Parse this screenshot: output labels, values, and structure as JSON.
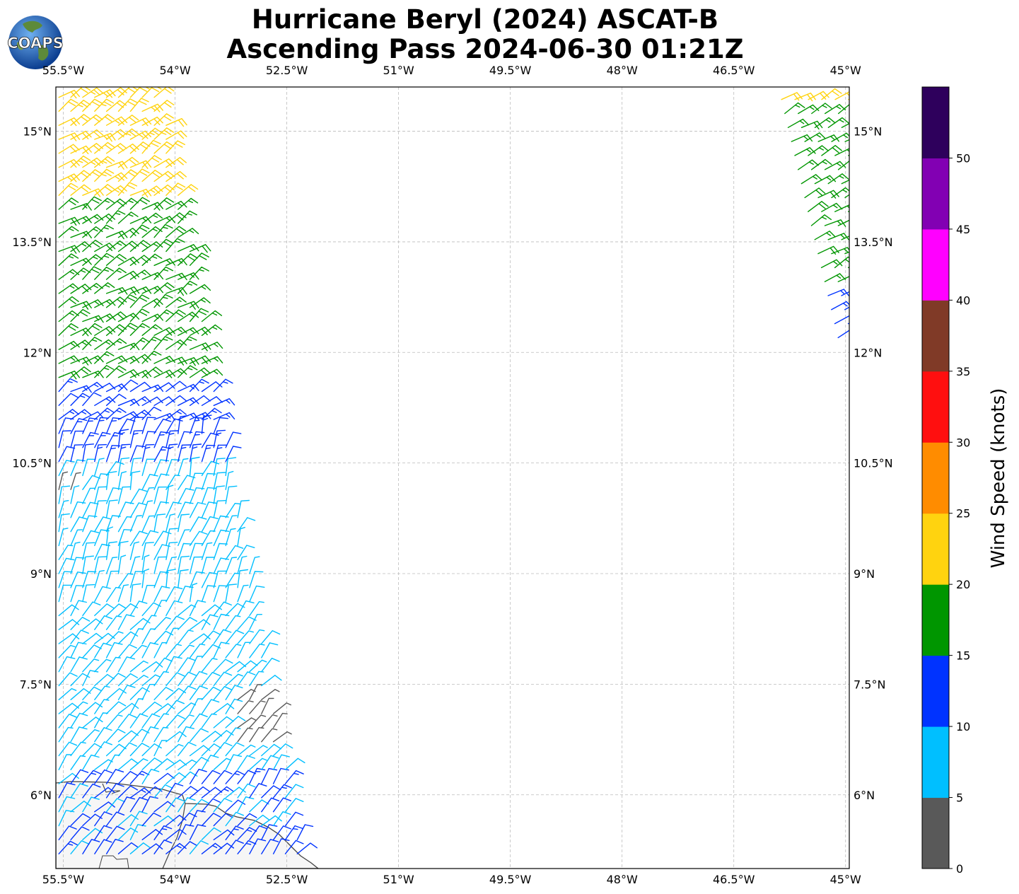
{
  "title_line1": "Hurricane Beryl (2024) ASCAT-B",
  "title_line2": "Ascending Pass 2024-06-30 01:21Z",
  "logo_text": "COAPS",
  "map": {
    "lon_range": [
      -55.6,
      -44.95
    ],
    "lat_range": [
      5.0,
      15.6
    ],
    "lon_ticks": [
      {
        "value": -55.5,
        "label": "55.5°W"
      },
      {
        "value": -54.0,
        "label": "54°W"
      },
      {
        "value": -52.5,
        "label": "52.5°W"
      },
      {
        "value": -51.0,
        "label": "51°W"
      },
      {
        "value": -49.5,
        "label": "49.5°W"
      },
      {
        "value": -48.0,
        "label": "48°W"
      },
      {
        "value": -46.5,
        "label": "46.5°W"
      },
      {
        "value": -45.0,
        "label": "45°W"
      }
    ],
    "lat_ticks": [
      {
        "value": 15.0,
        "label": "15°N"
      },
      {
        "value": 13.5,
        "label": "13.5°N"
      },
      {
        "value": 12.0,
        "label": "12°N"
      },
      {
        "value": 10.5,
        "label": "10.5°N"
      },
      {
        "value": 9.0,
        "label": "9°N"
      },
      {
        "value": 7.5,
        "label": "7.5°N"
      },
      {
        "value": 6.0,
        "label": "6°N"
      }
    ],
    "grid": true,
    "swaths": [
      {
        "name": "west",
        "lat_min": 5.2,
        "lat_max": 15.6,
        "west_lon": -55.6,
        "east_lon_at_top": -54.2,
        "east_lon_at_bottom": -52.3
      },
      {
        "name": "east",
        "lat_min": 12.2,
        "lat_max": 15.6,
        "west_lon_at_top": -45.9,
        "west_lon_at_bottom": -45.1,
        "east_lon": -44.95
      }
    ]
  },
  "colorbar": {
    "label": "Wind Speed (knots)",
    "range": [
      0,
      55
    ],
    "bins": [
      {
        "from": 0,
        "to": 5,
        "color": "#595959"
      },
      {
        "from": 5,
        "to": 10,
        "color": "#00bfff"
      },
      {
        "from": 10,
        "to": 15,
        "color": "#0033ff"
      },
      {
        "from": 15,
        "to": 20,
        "color": "#009600"
      },
      {
        "from": 20,
        "to": 25,
        "color": "#ffd30f"
      },
      {
        "from": 25,
        "to": 30,
        "color": "#ff8c00"
      },
      {
        "from": 30,
        "to": 35,
        "color": "#ff0f0f"
      },
      {
        "from": 35,
        "to": 40,
        "color": "#803a27"
      },
      {
        "from": 40,
        "to": 45,
        "color": "#ff00ff"
      },
      {
        "from": 45,
        "to": 50,
        "color": "#8200b3"
      },
      {
        "from": 50,
        "to": 55,
        "color": "#2e005c"
      }
    ],
    "ticks": [
      "0",
      "5",
      "10",
      "15",
      "20",
      "25",
      "30",
      "35",
      "40",
      "45",
      "50"
    ]
  },
  "coast_color": "#444444",
  "icons": [
    "globe-logo-icon"
  ]
}
